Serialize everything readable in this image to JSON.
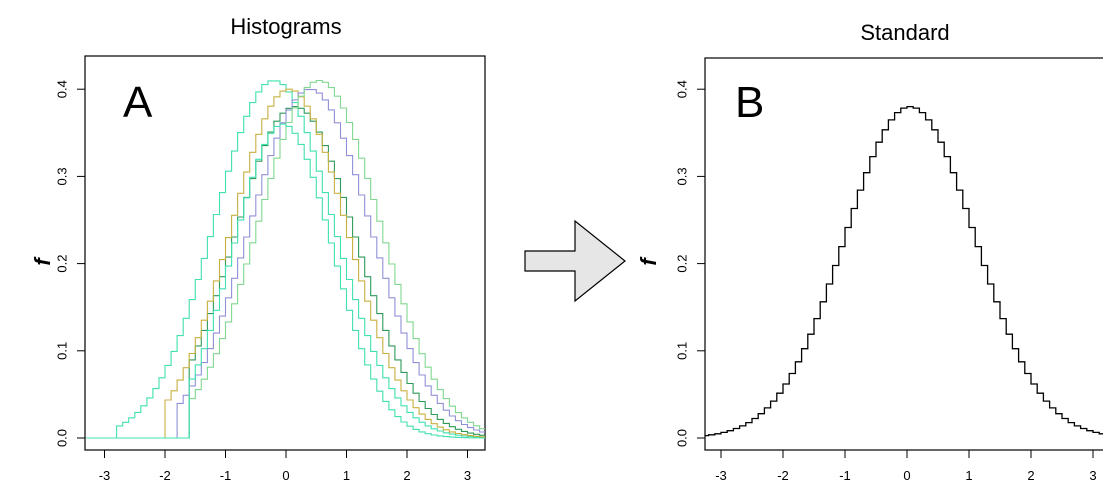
{
  "panels": {
    "a": {
      "title": "Histograms",
      "letter": "A",
      "ylabel": "f"
    },
    "b": {
      "title": "Standard",
      "letter": "B",
      "ylabel": "f"
    }
  },
  "colors": {
    "series": [
      "#40e0b0",
      "#2e9a5a",
      "#c8b040",
      "#9090d8",
      "#80d890"
    ],
    "standard": "#000000",
    "arrow_fill": "#e6e6e6",
    "arrow_stroke": "#000000"
  },
  "chart_data": [
    {
      "type": "line",
      "title": "Histograms",
      "xlabel": "",
      "ylabel": "f",
      "xlim": [
        -3.3,
        3.3
      ],
      "ylim": [
        0,
        0.42
      ],
      "xticks": [
        -3,
        -2,
        -1,
        0,
        1,
        2,
        3
      ],
      "yticks": [
        0.0,
        0.1,
        0.2,
        0.3,
        0.4
      ],
      "grid": false,
      "legend": "none",
      "step": true,
      "series": [
        {
          "start": -2.75,
          "mean": -0.2,
          "sd": 0.98,
          "peak": 0.41
        },
        {
          "start": -1.6,
          "mean": 0.15,
          "sd": 1.0,
          "peak": 0.38
        },
        {
          "start": -1.95,
          "mean": 0.05,
          "sd": 0.95,
          "peak": 0.4
        },
        {
          "start": -1.75,
          "mean": 0.4,
          "sd": 1.0,
          "peak": 0.4
        },
        {
          "start": -1.6,
          "mean": 0.55,
          "sd": 1.0,
          "peak": 0.41
        }
      ],
      "extra_series": {
        "start": -1.55,
        "mean": -0.05,
        "sd": 0.82,
        "peak": 0.36
      }
    },
    {
      "type": "line",
      "title": "Standard",
      "xlabel": "",
      "ylabel": "f",
      "xlim": [
        -3.3,
        3.3
      ],
      "ylim": [
        0,
        0.42
      ],
      "xticks": [
        -3,
        -2,
        -1,
        0,
        1,
        2,
        3
      ],
      "yticks": [
        0.0,
        0.1,
        0.2,
        0.3,
        0.4
      ],
      "grid": false,
      "legend": "none",
      "step": true,
      "series": [
        {
          "start": -3.3,
          "mean": 0.05,
          "sd": 1.05,
          "peak": 0.38
        }
      ]
    }
  ]
}
